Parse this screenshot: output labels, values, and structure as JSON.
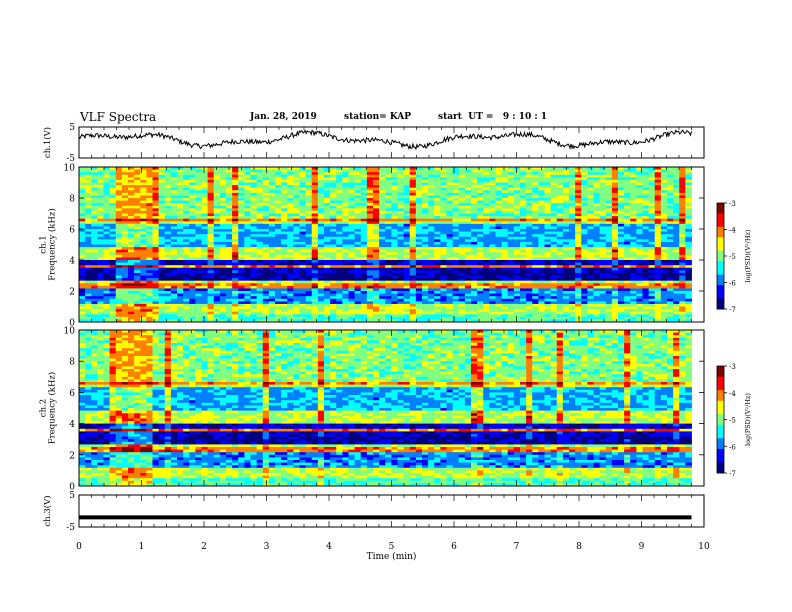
{
  "header": {
    "title": "VLF Spectra",
    "date": "Jan. 28, 2019",
    "station": "station= KAP",
    "start": "start  UT =   9 : 10 : 1"
  },
  "colors": {
    "colormap": [
      "#00007f",
      "#0000ff",
      "#0080ff",
      "#00ffff",
      "#80ff80",
      "#ffff00",
      "#ff8000",
      "#ff0000",
      "#7f0000"
    ]
  },
  "chart_data": [
    {
      "type": "line",
      "ylabel": "ch.1(V)",
      "ylim": [
        -5,
        5
      ],
      "ytick_labels": [
        "5",
        "-5"
      ],
      "xlim": [
        0,
        10
      ],
      "series": [
        {
          "values_description_range": [
            -2.5,
            3.5
          ]
        }
      ]
    },
    {
      "type": "heatmap",
      "ylabel": "ch.1\nFrequency (kHz)",
      "ylim": [
        0,
        10
      ],
      "yticks": [
        0,
        2,
        4,
        6,
        8,
        10
      ],
      "xlim": [
        0,
        10
      ],
      "data_end_min": 9.8,
      "colorbar": {
        "label": "log(PSD)(V²/Hz)",
        "range": [
          -7,
          -3
        ],
        "ticks": [
          -3,
          -4,
          -5,
          -6,
          -7
        ]
      }
    },
    {
      "type": "heatmap",
      "ylabel": "ch.2\nFrequency (kHz)",
      "ylim": [
        0,
        10
      ],
      "yticks": [
        0,
        2,
        4,
        6,
        8,
        10
      ],
      "xlim": [
        0,
        10
      ],
      "data_end_min": 9.8,
      "colorbar": {
        "label": "log(PSD)(V²/Hz)",
        "range": [
          -7,
          -3
        ],
        "ticks": [
          -3,
          -4,
          -5,
          -6,
          -7
        ]
      }
    },
    {
      "type": "line",
      "ylabel": "ch.3(V)",
      "ylim": [
        -5,
        5
      ],
      "ytick_labels": [
        "5",
        "-5"
      ],
      "xlim": [
        0,
        10
      ],
      "xlabel": "Time  (min)",
      "xticks": [
        0,
        1,
        2,
        3,
        4,
        5,
        6,
        7,
        8,
        9,
        10
      ],
      "series": [
        {
          "constant_value": -2
        }
      ]
    }
  ]
}
